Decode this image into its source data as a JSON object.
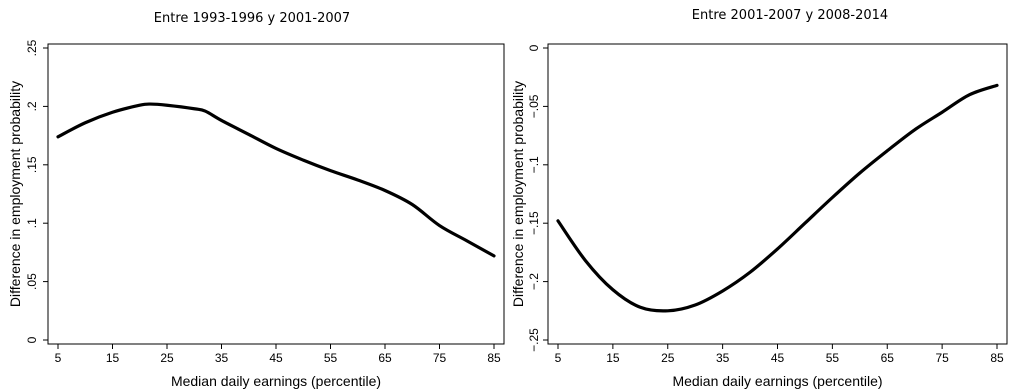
{
  "chart_data": [
    {
      "type": "line",
      "title": "Entre 1993-1996 y 2001-2007",
      "xlabel": "Median daily earnings (percentile)",
      "ylabel": "Difference in employment probability",
      "xlim": [
        5,
        85
      ],
      "ylim": [
        0,
        0.25
      ],
      "xticks": [
        5,
        15,
        25,
        35,
        45,
        55,
        65,
        75,
        85
      ],
      "xtick_labels": [
        "5",
        "15",
        "25",
        "35",
        "45",
        "55",
        "65",
        "75",
        "85"
      ],
      "yticks": [
        0,
        0.05,
        0.1,
        0.15,
        0.2,
        0.25
      ],
      "ytick_labels": [
        "0",
        ".05",
        ".1",
        ".15",
        ".2",
        ".25"
      ],
      "grid": false,
      "legend": "none",
      "series": [
        {
          "x": [
            5,
            10,
            15,
            20,
            22,
            25,
            30,
            32,
            35,
            40,
            45,
            50,
            55,
            60,
            65,
            70,
            75,
            80,
            85
          ],
          "y": [
            0.174,
            0.186,
            0.195,
            0.201,
            0.202,
            0.201,
            0.198,
            0.196,
            0.188,
            0.176,
            0.164,
            0.154,
            0.145,
            0.137,
            0.128,
            0.116,
            0.098,
            0.085,
            0.072
          ]
        }
      ]
    },
    {
      "type": "line",
      "title": "Entre 2001-2007 y 2008-2014",
      "xlabel": "Median daily earnings (percentile)",
      "ylabel": "Difference in employment probability",
      "xlim": [
        5,
        85
      ],
      "ylim": [
        -0.25,
        0
      ],
      "xticks": [
        5,
        15,
        25,
        35,
        45,
        55,
        65,
        75,
        85
      ],
      "xtick_labels": [
        "5",
        "15",
        "25",
        "35",
        "45",
        "55",
        "65",
        "75",
        "85"
      ],
      "yticks": [
        -0.25,
        -0.2,
        -0.15,
        -0.1,
        -0.05,
        0
      ],
      "ytick_labels": [
        "−.25",
        "−.2",
        "−.15",
        "−.1",
        "−.05",
        "0"
      ],
      "grid": false,
      "legend": "none",
      "series": [
        {
          "x": [
            5,
            10,
            15,
            20,
            25,
            30,
            35,
            40,
            45,
            50,
            55,
            60,
            65,
            70,
            75,
            80,
            85
          ],
          "y": [
            -0.148,
            -0.182,
            -0.207,
            -0.222,
            -0.225,
            -0.22,
            -0.208,
            -0.192,
            -0.172,
            -0.15,
            -0.128,
            -0.107,
            -0.088,
            -0.07,
            -0.055,
            -0.04,
            -0.032
          ]
        }
      ]
    }
  ]
}
